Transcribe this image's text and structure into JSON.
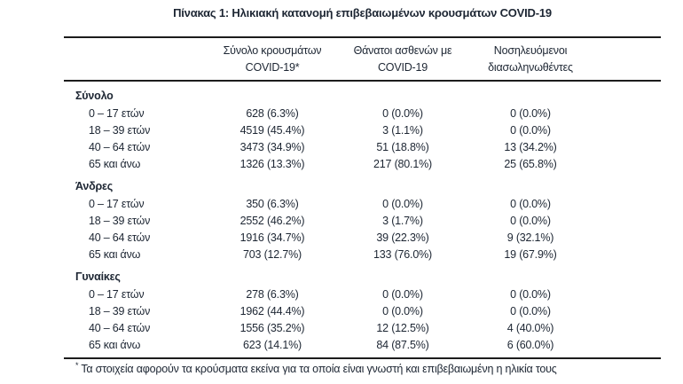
{
  "title": "Πίνακας 1: Ηλικιακή κατανομή επιβεβαιωμένων κρουσμάτων COVID-19",
  "header": {
    "cases_line1": "Σύνολο κρουσμάτων",
    "cases_line2": "COVID-19*",
    "deaths_line1": "Θάνατοι ασθενών με",
    "deaths_line2": "COVID-19",
    "intubated_line1": "Νοσηλευόμενοι",
    "intubated_line2": "διασωληνωθέντες"
  },
  "sections": [
    {
      "label": "Σύνολο",
      "rows": [
        {
          "age": "0 – 17 ετών",
          "cases": "628 (6.3%)",
          "deaths": "0 (0.0%)",
          "intubated": "0 (0.0%)"
        },
        {
          "age": "18 – 39 ετών",
          "cases": "4519 (45.4%)",
          "deaths": "3 (1.1%)",
          "intubated": "0 (0.0%)"
        },
        {
          "age": "40 – 64 ετών",
          "cases": "3473 (34.9%)",
          "deaths": "51 (18.8%)",
          "intubated": "13 (34.2%)"
        },
        {
          "age": "65 και άνω",
          "cases": "1326 (13.3%)",
          "deaths": "217 (80.1%)",
          "intubated": "25 (65.8%)"
        }
      ]
    },
    {
      "label": "Άνδρες",
      "rows": [
        {
          "age": "0 – 17 ετών",
          "cases": "350 (6.3%)",
          "deaths": "0 (0.0%)",
          "intubated": "0 (0.0%)"
        },
        {
          "age": "18 – 39 ετών",
          "cases": "2552 (46.2%)",
          "deaths": "3 (1.7%)",
          "intubated": "0 (0.0%)"
        },
        {
          "age": "40 – 64 ετών",
          "cases": "1916 (34.7%)",
          "deaths": "39 (22.3%)",
          "intubated": "9 (32.1%)"
        },
        {
          "age": "65 και άνω",
          "cases": "703 (12.7%)",
          "deaths": "133 (76.0%)",
          "intubated": "19 (67.9%)"
        }
      ]
    },
    {
      "label": "Γυναίκες",
      "rows": [
        {
          "age": "0 – 17 ετών",
          "cases": "278 (6.3%)",
          "deaths": "0 (0.0%)",
          "intubated": "0 (0.0%)"
        },
        {
          "age": "18 – 39 ετών",
          "cases": "1962 (44.4%)",
          "deaths": "0 (0.0%)",
          "intubated": "0 (0.0%)"
        },
        {
          "age": "40 – 64 ετών",
          "cases": "1556 (35.2%)",
          "deaths": "12 (12.5%)",
          "intubated": "4 (40.0%)"
        },
        {
          "age": "65 και άνω",
          "cases": "623 (14.1%)",
          "deaths": "84 (87.5%)",
          "intubated": "6 (60.0%)"
        }
      ]
    }
  ],
  "footnote": {
    "marker": "*",
    "text": "Τα στοιχεία αφορούν τα κρούσματα εκείνα για τα οποία είναι γνωστή και επιβεβαιωμένη η ηλικία τους"
  },
  "colors": {
    "text": "#1d2633",
    "rule": "#1c1c1c",
    "background": "#ffffff"
  }
}
